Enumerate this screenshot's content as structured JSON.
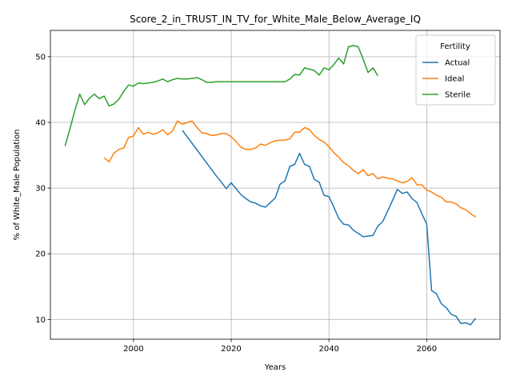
{
  "chart_data": {
    "type": "line",
    "title": "Score_2_in_TRUST_IN_TV_for_White_Male_Below_Average_IQ",
    "xlabel": "Years",
    "ylabel": "% of White_Male Population",
    "xlim": [
      1983,
      2075
    ],
    "ylim": [
      7,
      54
    ],
    "xticks": [
      2000,
      2020,
      2040,
      2060
    ],
    "yticks": [
      10,
      20,
      30,
      40,
      50
    ],
    "grid": true,
    "legend": {
      "title": "Fertility",
      "placement": "upper right"
    },
    "series": [
      {
        "name": "Actual",
        "color": "#1f77b4",
        "x": [
          2010,
          2011,
          2012,
          2013,
          2014,
          2015,
          2016,
          2017,
          2018,
          2019,
          2020,
          2021,
          2022,
          2023,
          2024,
          2025,
          2026,
          2027,
          2028,
          2029,
          2030,
          2031,
          2032,
          2033,
          2034,
          2035,
          2036,
          2037,
          2038,
          2039,
          2040,
          2041,
          2042,
          2043,
          2044,
          2045,
          2046,
          2047,
          2048,
          2049,
          2050,
          2051,
          2052,
          2053,
          2054,
          2055,
          2056,
          2057,
          2058,
          2059,
          2060,
          2061,
          2062,
          2063,
          2064,
          2065,
          2066,
          2067,
          2068,
          2069,
          2070
        ],
        "y": [
          38.8,
          37.8,
          36.8,
          35.8,
          34.8,
          33.8,
          32.8,
          31.8,
          30.9,
          29.9,
          30.8,
          29.9,
          29.0,
          28.4,
          27.9,
          27.7,
          27.3,
          27.1,
          27.8,
          28.5,
          30.6,
          31.1,
          33.3,
          33.6,
          35.3,
          33.6,
          33.3,
          31.3,
          30.9,
          28.9,
          28.7,
          27.1,
          25.4,
          24.5,
          24.4,
          23.6,
          23.1,
          22.6,
          22.7,
          22.8,
          24.2,
          24.9,
          26.5,
          28.1,
          29.8,
          29.2,
          29.4,
          28.4,
          27.8,
          26.1,
          24.5,
          14.4,
          13.9,
          12.4,
          11.8,
          10.8,
          10.5,
          9.4,
          9.5,
          9.2,
          10.2
        ]
      },
      {
        "name": "Ideal",
        "color": "#ff7f0e",
        "x": [
          1994,
          1995,
          1996,
          1997,
          1998,
          1999,
          2000,
          2001,
          2002,
          2003,
          2004,
          2005,
          2006,
          2007,
          2008,
          2009,
          2010,
          2011,
          2012,
          2013,
          2014,
          2015,
          2016,
          2017,
          2018,
          2019,
          2020,
          2021,
          2022,
          2023,
          2024,
          2025,
          2026,
          2027,
          2028,
          2029,
          2030,
          2031,
          2032,
          2033,
          2034,
          2035,
          2036,
          2037,
          2038,
          2039,
          2040,
          2041,
          2042,
          2043,
          2044,
          2045,
          2046,
          2047,
          2048,
          2049,
          2050,
          2051,
          2052,
          2053,
          2054,
          2055,
          2056,
          2057,
          2058,
          2059,
          2060,
          2061,
          2062,
          2063,
          2064,
          2065,
          2066,
          2067,
          2068,
          2069,
          2070
        ],
        "y": [
          34.6,
          34.0,
          35.3,
          35.9,
          36.1,
          37.7,
          37.9,
          39.2,
          38.2,
          38.5,
          38.2,
          38.4,
          38.9,
          38.1,
          38.7,
          40.2,
          39.7,
          40.0,
          40.2,
          39.2,
          38.4,
          38.3,
          38.0,
          38.1,
          38.3,
          38.3,
          37.8,
          37.1,
          36.2,
          35.9,
          35.9,
          36.1,
          36.7,
          36.5,
          36.9,
          37.2,
          37.3,
          37.3,
          37.5,
          38.5,
          38.5,
          39.2,
          38.9,
          38.0,
          37.4,
          37.0,
          36.3,
          35.4,
          34.7,
          33.9,
          33.4,
          32.7,
          32.2,
          32.8,
          31.9,
          32.2,
          31.4,
          31.7,
          31.5,
          31.4,
          31.1,
          30.8,
          31.0,
          31.6,
          30.5,
          30.5,
          29.7,
          29.4,
          28.9,
          28.6,
          27.9,
          27.9,
          27.6,
          27.0,
          26.7,
          26.1,
          25.6
        ]
      },
      {
        "name": "Sterile",
        "color": "#2ca02c",
        "x": [
          1986,
          1987,
          1988,
          1989,
          1990,
          1991,
          1992,
          1993,
          1994,
          1995,
          1996,
          1997,
          1998,
          1999,
          2000,
          2001,
          2002,
          2003,
          2004,
          2005,
          2006,
          2007,
          2008,
          2009,
          2010,
          2011,
          2012,
          2013,
          2014,
          2015,
          2016,
          2017,
          2018,
          2019,
          2020,
          2021,
          2022,
          2023,
          2024,
          2025,
          2026,
          2027,
          2028,
          2029,
          2030,
          2031,
          2032,
          2033,
          2034,
          2035,
          2036,
          2037,
          2038,
          2039,
          2040,
          2041,
          2042,
          2043,
          2044,
          2045,
          2046,
          2047,
          2048,
          2049,
          2050
        ],
        "y": [
          36.4,
          39.0,
          41.8,
          44.3,
          42.7,
          43.7,
          44.3,
          43.6,
          44.0,
          42.5,
          42.8,
          43.5,
          44.7,
          45.7,
          45.5,
          46.0,
          45.9,
          46.0,
          46.1,
          46.3,
          46.6,
          46.2,
          46.5,
          46.7,
          46.6,
          46.6,
          46.7,
          46.8,
          46.5,
          46.1,
          46.1,
          46.2,
          46.2,
          46.2,
          46.2,
          46.2,
          46.2,
          46.2,
          46.2,
          46.2,
          46.2,
          46.2,
          46.2,
          46.2,
          46.2,
          46.2,
          46.6,
          47.3,
          47.2,
          48.3,
          48.1,
          47.9,
          47.2,
          48.3,
          48.0,
          48.8,
          49.8,
          48.9,
          51.5,
          51.7,
          51.5,
          49.6,
          47.6,
          48.3,
          47.1
        ]
      }
    ]
  }
}
